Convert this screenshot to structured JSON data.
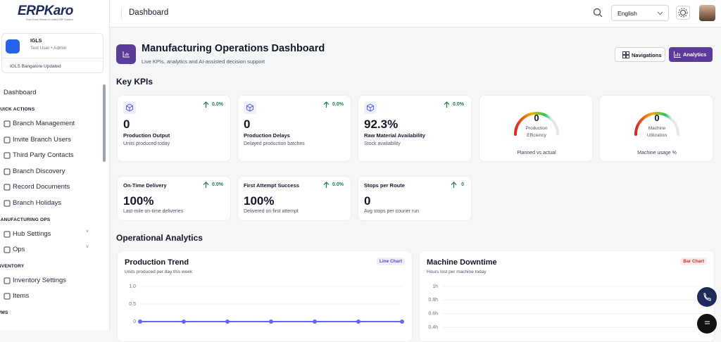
{
  "brand": {
    "name": "ERPKaro",
    "tagline": "From Excel Sheets to Unified ERP Solution"
  },
  "org": {
    "name": "IGLS",
    "user": "Test User • Admin",
    "branch": "IGLS Bangalore Updated"
  },
  "nav": {
    "top": "Dashboard",
    "sections": [
      {
        "title": "QUICK ACTIONS",
        "items": [
          "Branch Management",
          "Invite Branch Users",
          "Third Party Contacts",
          "Branch Discovery",
          "Record Documents",
          "Branch Holidays"
        ]
      },
      {
        "title": "MANUFACTURING OPS",
        "items": [
          "Hub Settings",
          "Ops"
        ]
      },
      {
        "title": "INVENTORY",
        "items": [
          "Inventory Settings",
          "Items"
        ]
      },
      {
        "title": "WMS"
      }
    ]
  },
  "topbar": {
    "title": "Dashboard",
    "language": "English"
  },
  "header": {
    "title": "Manufacturing Operations Dashboard",
    "subtitle": "Live KPIs, analytics and AI-assisted decision support",
    "buttons": [
      "Navigations",
      "Analytics"
    ]
  },
  "kpi_title": "Key KPIs",
  "kpis": [
    {
      "label": "Production Output",
      "value": "0",
      "change": "0.0%",
      "desc": "Units produced today"
    },
    {
      "label": "Production Delays",
      "value": "0",
      "change": "0.0%",
      "desc": "Delayed production batches"
    },
    {
      "label": "Raw Material Availability",
      "value": "92.3%",
      "change": "0.0%",
      "desc": "Stock availability"
    }
  ],
  "gauges": [
    {
      "value": "0",
      "label": "Production Efficiency",
      "caption": "Planned vs actual"
    },
    {
      "value": "0",
      "label": "Machine Utilization",
      "caption": "Machine usage %"
    }
  ],
  "kpis2": [
    {
      "label": "On-Time Delivery",
      "change": "0.0%",
      "value": "100%",
      "desc": "Last-mile on-time deliveries"
    },
    {
      "label": "First Attempt Success",
      "change": "0.0%",
      "value": "100%",
      "desc": "Delivered on first attempt"
    },
    {
      "label": "Stops per Route",
      "change": "0",
      "value": "0",
      "desc": "Avg stops per courier run"
    }
  ],
  "analytics_title": "Operational Analytics",
  "chart_data": [
    {
      "type": "line",
      "title": "Production Trend",
      "subtitle": "Units produced per day this week",
      "badge": "Line Chart",
      "values": [
        0,
        0,
        0,
        0,
        0,
        0,
        0
      ],
      "color": "#6366f1",
      "ylim": [
        0,
        1
      ],
      "yticks": [
        0,
        0.5,
        {
          "value": 1,
          "label": "1.0"
        }
      ],
      "grid": true
    },
    {
      "type": "bar",
      "title": "Machine Downtime",
      "subtitle": "Hours lost per machine today",
      "badge": "Bar Chart",
      "ylim": [
        0,
        1
      ],
      "yticks": [
        {
          "value": 0.4,
          "label": "0.4h"
        },
        {
          "value": 0.6,
          "label": "0.6h"
        },
        {
          "value": 0.8,
          "label": "0.8h"
        },
        {
          "value": 1,
          "label": "1h"
        }
      ],
      "grid": true
    }
  ]
}
